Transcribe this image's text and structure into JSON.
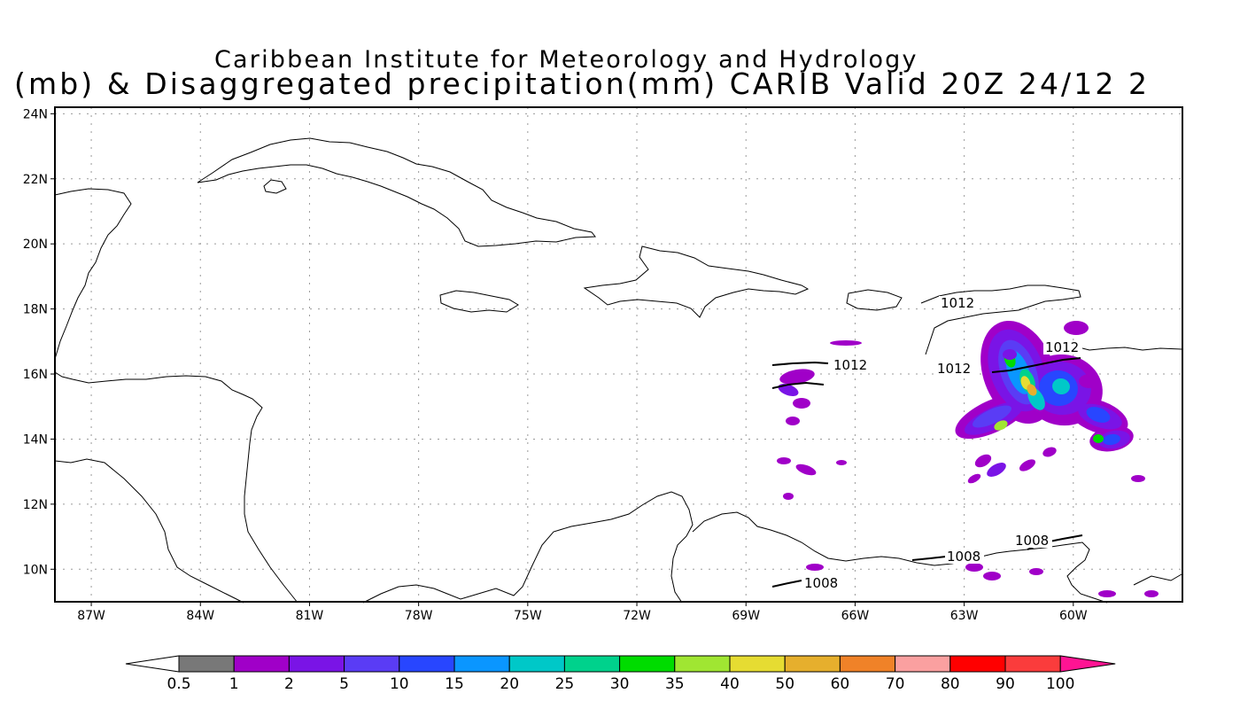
{
  "title": {
    "line1": "Caribbean Institute for Meteorology and Hydrology",
    "line2": "(mb) & Disaggregated precipitation(mm) CARIB Valid 20Z 24/12 2"
  },
  "map": {
    "lon_range": [
      -88.0,
      -57.0
    ],
    "lat_range": [
      9.0,
      24.2
    ],
    "lat_ticks": [
      "24N",
      "22N",
      "20N",
      "18N",
      "16N",
      "14N",
      "12N",
      "10N"
    ],
    "lat_values": [
      24,
      22,
      20,
      18,
      16,
      14,
      12,
      10
    ],
    "lon_ticks": [
      "87W",
      "84W",
      "81W",
      "78W",
      "75W",
      "72W",
      "69W",
      "66W",
      "63W",
      "60W"
    ],
    "lon_values": [
      -87,
      -84,
      -81,
      -78,
      -75,
      -72,
      -69,
      -66,
      -63,
      -60
    ],
    "grid": true,
    "isobar_labels": [
      "1012",
      "1012",
      "1012",
      "1012",
      "1008",
      "1008",
      "1008"
    ]
  },
  "colorbar": {
    "labels": [
      "0.5",
      "1",
      "2",
      "5",
      "10",
      "15",
      "20",
      "25",
      "30",
      "35",
      "40",
      "50",
      "60",
      "70",
      "80",
      "90",
      "100"
    ],
    "colors": [
      "#787878",
      "#a000c8",
      "#7a14e6",
      "#5a3cf5",
      "#2846ff",
      "#0a96ff",
      "#00c8c8",
      "#00d28c",
      "#00dc00",
      "#a0e632",
      "#e6dc32",
      "#e6af2d",
      "#f08228",
      "#faa0a0",
      "#ff0000",
      "#fa3c3c",
      "#ff1493"
    ]
  }
}
